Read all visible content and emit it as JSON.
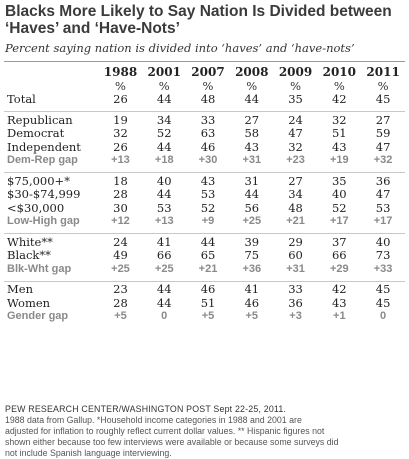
{
  "title": "Blacks More Likely to Say Nation Is Divided between ‘Haves’ and ‘Have-Nots’",
  "subtitle": "Percent saying nation is divided into ‘haves’ and ‘have-nots’",
  "chart_data": {
    "type": "table",
    "columns": [
      "1988",
      "2001",
      "2007",
      "2008",
      "2009",
      "2010",
      "2011"
    ],
    "unit_row": [
      "%",
      "%",
      "%",
      "%",
      "%",
      "%",
      "%"
    ],
    "groups": [
      {
        "rows": [
          {
            "label": "Total",
            "kind": "data",
            "values": [
              "26",
              "44",
              "48",
              "44",
              "35",
              "42",
              "45"
            ]
          }
        ]
      },
      {
        "rows": [
          {
            "label": "Republican",
            "kind": "data",
            "values": [
              "19",
              "34",
              "33",
              "27",
              "24",
              "32",
              "27"
            ]
          },
          {
            "label": "Democrat",
            "kind": "data",
            "values": [
              "32",
              "52",
              "63",
              "58",
              "47",
              "51",
              "59"
            ]
          },
          {
            "label": "Independent",
            "kind": "data",
            "values": [
              "26",
              "44",
              "46",
              "43",
              "32",
              "43",
              "47"
            ]
          },
          {
            "label": "Dem-Rep gap",
            "kind": "gap",
            "values": [
              "+13",
              "+18",
              "+30",
              "+31",
              "+23",
              "+19",
              "+32"
            ]
          }
        ]
      },
      {
        "rows": [
          {
            "label": "$75,000+*",
            "kind": "data",
            "values": [
              "18",
              "40",
              "43",
              "31",
              "27",
              "35",
              "36"
            ]
          },
          {
            "label": "$30-$74,999",
            "kind": "data",
            "values": [
              "28",
              "44",
              "53",
              "44",
              "34",
              "40",
              "47"
            ]
          },
          {
            "label": "<$30,000",
            "kind": "data",
            "values": [
              "30",
              "53",
              "52",
              "56",
              "48",
              "52",
              "53"
            ]
          },
          {
            "label": "Low-High gap",
            "kind": "gap",
            "values": [
              "+12",
              "+13",
              "+9",
              "+25",
              "+21",
              "+17",
              "+17"
            ]
          }
        ]
      },
      {
        "rows": [
          {
            "label": "White**",
            "kind": "data",
            "values": [
              "24",
              "41",
              "44",
              "39",
              "29",
              "37",
              "40"
            ]
          },
          {
            "label": "Black**",
            "kind": "data",
            "values": [
              "49",
              "66",
              "65",
              "75",
              "60",
              "66",
              "73"
            ]
          },
          {
            "label": "Blk-Wht gap",
            "kind": "gap",
            "values": [
              "+25",
              "+25",
              "+21",
              "+36",
              "+31",
              "+29",
              "+33"
            ]
          }
        ]
      },
      {
        "rows": [
          {
            "label": "Men",
            "kind": "data",
            "values": [
              "23",
              "44",
              "46",
              "41",
              "33",
              "42",
              "45"
            ]
          },
          {
            "label": "Women",
            "kind": "data",
            "values": [
              "28",
              "44",
              "51",
              "46",
              "36",
              "43",
              "45"
            ]
          },
          {
            "label": "Gender gap",
            "kind": "gap",
            "values": [
              "+5",
              "0",
              "+5",
              "+5",
              "+3",
              "+1",
              "0"
            ]
          }
        ]
      }
    ]
  },
  "notes": {
    "source": "PEW RESEARCH CENTER/WASHINGTON POST Sept 22-25, 2011.",
    "lines": [
      "1988 data from Gallup. *Household income categories in 1988 and 2001 are",
      "adjusted for inflation to roughly reflect current dollar values. ** Hispanic figures not",
      "shown either because too few interviews were available or because some surveys did",
      "not include Spanish language interviewing."
    ]
  }
}
